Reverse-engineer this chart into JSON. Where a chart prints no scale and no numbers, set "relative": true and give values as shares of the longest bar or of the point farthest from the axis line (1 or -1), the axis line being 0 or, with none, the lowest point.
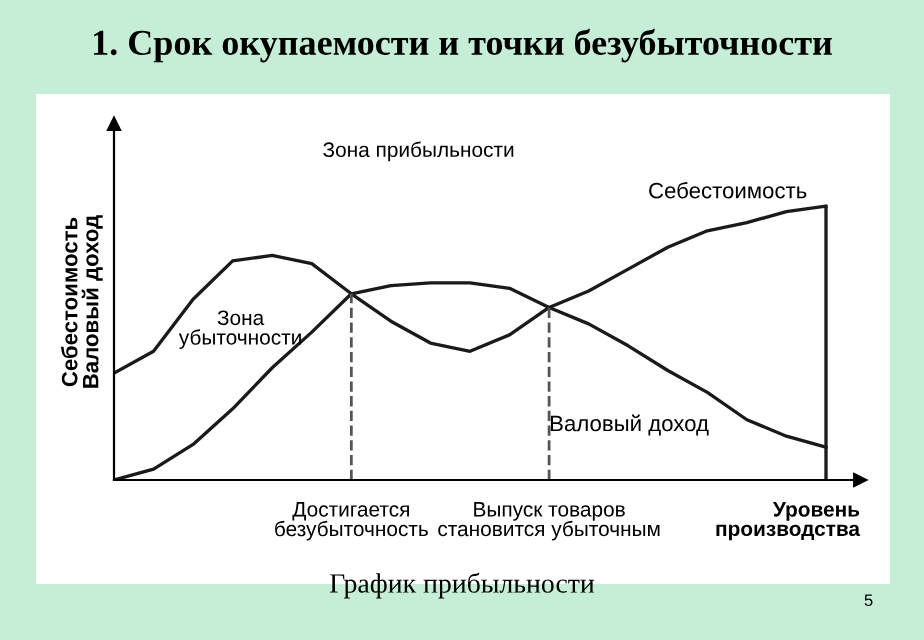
{
  "chart_data": {
    "type": "line",
    "title": "1. Срок окупаемости и точки безубыточности",
    "xlabel": "Уровень\nпроизводства",
    "ylabel": "Себестоимость\nВаловый доход",
    "relative": true,
    "categories": [
      null,
      null,
      null,
      null,
      null,
      null,
      null,
      null,
      null,
      null,
      null,
      null,
      null,
      null,
      null,
      null,
      null,
      null,
      null
    ],
    "series": [
      {
        "name": "Себестоимость",
        "color": "#1a1a1a",
        "values": [
          0.39,
          0.47,
          0.66,
          0.8,
          0.82,
          0.79,
          0.68,
          0.58,
          0.5,
          0.47,
          0.53,
          0.63,
          0.69,
          0.77,
          0.85,
          0.91,
          0.94,
          0.98,
          1.0
        ]
      },
      {
        "name": "Валовый доход",
        "color": "#1a1a1a",
        "values": [
          0.0,
          0.04,
          0.13,
          0.26,
          0.41,
          0.54,
          0.68,
          0.71,
          0.72,
          0.72,
          0.7,
          0.63,
          0.57,
          0.49,
          0.4,
          0.32,
          0.22,
          0.16,
          0.12
        ]
      }
    ],
    "annotations": [
      "Зона прибыльности",
      "Зона\nубыточности",
      "График прибыльности",
      "5",
      "Достигается\nбезубыточность",
      "Выпуск товаров\nстановится убыточным"
    ],
    "grid": false,
    "legend": false,
    "marker": "none",
    "line_style": "solid"
  }
}
